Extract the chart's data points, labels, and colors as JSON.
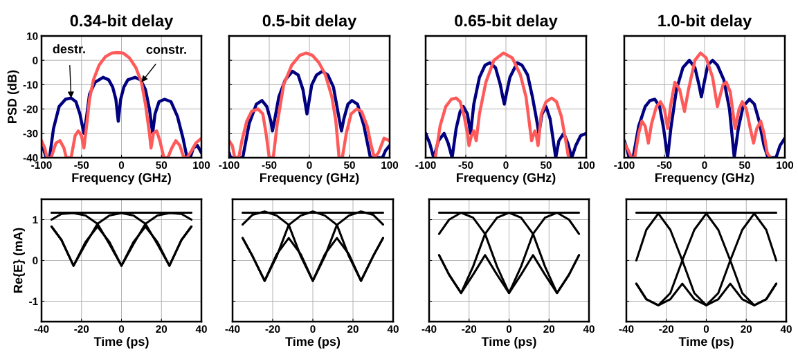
{
  "chart_data": [
    {
      "type": "line",
      "title": "0.34-bit delay",
      "xlabel": "Frequency (GHz)",
      "ylabel": "PSD (dB)",
      "xlim": [
        -100,
        100
      ],
      "ylim": [
        -40,
        10
      ],
      "xticks": [
        -100,
        -50,
        0,
        50,
        100
      ],
      "yticks": [
        -40,
        -30,
        -20,
        -10,
        0,
        10
      ],
      "grid": true,
      "annotations": [
        {
          "text": "destr.",
          "x": -63,
          "y": -15.5
        },
        {
          "text": "constr.",
          "x": 25,
          "y": -9
        }
      ],
      "series": [
        {
          "color": "#000080",
          "x": [
            -100,
            -97,
            -94,
            -90,
            -85,
            -78,
            -70,
            -63,
            -57,
            -52,
            -47,
            -44,
            -40,
            -33,
            -23,
            -16,
            -11,
            -7,
            -4,
            -1,
            3,
            8,
            17,
            24,
            30,
            35,
            39,
            42,
            47,
            54,
            62,
            70,
            77,
            82,
            86,
            90,
            95,
            100
          ],
          "values": [
            -35,
            -37,
            -40,
            -40,
            -28,
            -19,
            -16,
            -15.5,
            -17,
            -22,
            -30,
            -24,
            -14,
            -9,
            -7,
            -8,
            -11,
            -16,
            -25,
            -16,
            -11,
            -8,
            -7,
            -8,
            -12,
            -20,
            -30,
            -22,
            -17,
            -16,
            -17,
            -23,
            -32,
            -40,
            -40,
            -36,
            -35,
            -38
          ]
        },
        {
          "color": "#ff5a5a",
          "x": [
            -100,
            -96,
            -93,
            -88,
            -82,
            -77,
            -72,
            -69,
            -63,
            -58,
            -54,
            -50,
            -47,
            -44,
            -40,
            -35,
            -28,
            -20,
            -12,
            -5,
            2,
            10,
            18,
            25,
            30,
            35,
            37,
            40,
            44,
            48,
            53,
            58,
            63,
            68,
            73,
            78,
            82,
            88,
            93,
            100
          ],
          "values": [
            -33,
            -36,
            -40,
            -40,
            -34,
            -33,
            -36,
            -40,
            -40,
            -31,
            -29,
            -31,
            -36,
            -28,
            -16,
            -8,
            -2,
            1.5,
            3,
            3.2,
            3,
            1,
            -3,
            -9,
            -18,
            -30,
            -36,
            -30,
            -29,
            -33,
            -40,
            -40,
            -36,
            -33,
            -35,
            -40,
            -40,
            -37,
            -34,
            -32
          ]
        }
      ]
    },
    {
      "type": "line",
      "title": "0.5-bit delay",
      "xlabel": "Frequency (GHz)",
      "xlim": [
        -100,
        100
      ],
      "ylim": [
        -40,
        10
      ],
      "xticks": [
        -100,
        -50,
        0,
        50,
        100
      ],
      "yticks": [
        -40,
        -30,
        -20,
        -10,
        0,
        10
      ],
      "grid": true,
      "tick_labels": "x",
      "series": [
        {
          "color": "#000080",
          "x": [
            -100,
            -98,
            -95,
            -90,
            -83,
            -75,
            -66,
            -59,
            -53,
            -48,
            -46,
            -43,
            -38,
            -30,
            -21,
            -14,
            -8,
            -5,
            -3,
            -1,
            3,
            9,
            16,
            23,
            30,
            36,
            40,
            43,
            48,
            53,
            60,
            68,
            76,
            83,
            91,
            95,
            100
          ],
          "values": [
            -38,
            -40,
            -40,
            -40,
            -40,
            -26,
            -18,
            -16.5,
            -19,
            -25,
            -29,
            -24,
            -15,
            -8,
            -4.5,
            -6,
            -12,
            -18,
            -22,
            -18,
            -10,
            -6,
            -4.5,
            -6,
            -11,
            -22,
            -29,
            -24,
            -18,
            -16.5,
            -18,
            -27,
            -40,
            -40,
            -40,
            -37,
            -35
          ]
        },
        {
          "color": "#ff5a5a",
          "x": [
            -100,
            -96,
            -93,
            -88,
            -84,
            -78,
            -72,
            -64,
            -58,
            -54,
            -50,
            -45,
            -40,
            -32,
            -22,
            -12,
            -4,
            4,
            12,
            20,
            28,
            33,
            37,
            41,
            46,
            52,
            59,
            65,
            72,
            77,
            81,
            86,
            93,
            100
          ],
          "values": [
            -33,
            -35,
            -40,
            -40,
            -33,
            -25,
            -21,
            -20,
            -22,
            -30,
            -40,
            -40,
            -26,
            -10,
            -2,
            2,
            3,
            2,
            -1,
            -6,
            -15,
            -25,
            -40,
            -40,
            -30,
            -22,
            -20,
            -21,
            -27,
            -35,
            -40,
            -38,
            -32,
            -33
          ]
        }
      ]
    },
    {
      "type": "line",
      "title": "0.65-bit delay",
      "xlabel": "Frequency (GHz)",
      "xlim": [
        -100,
        100
      ],
      "ylim": [
        -40,
        10
      ],
      "xticks": [
        -100,
        -50,
        0,
        50,
        100
      ],
      "yticks": [
        -40,
        -30,
        -20,
        -10,
        0,
        10
      ],
      "grid": true,
      "tick_labels": "x",
      "series": [
        {
          "color": "#000080",
          "x": [
            -100,
            -95,
            -90,
            -84,
            -77,
            -72,
            -67,
            -62,
            -57,
            -53,
            -48,
            -44,
            -40,
            -33,
            -26,
            -20,
            -13,
            -7,
            -4,
            -2,
            1,
            5,
            14,
            20,
            27,
            33,
            38,
            41,
            45,
            50,
            55,
            59,
            62,
            66,
            72,
            77,
            82,
            87,
            93,
            100
          ],
          "values": [
            -30,
            -34,
            -40,
            -33,
            -30,
            -34,
            -40,
            -28,
            -21,
            -19,
            -22,
            -30,
            -18,
            -7,
            -2,
            -1,
            -3,
            -10,
            -15,
            -18,
            -13,
            -7,
            -1,
            -2,
            -6,
            -15,
            -24,
            -30,
            -22,
            -19,
            -24,
            -33,
            -40,
            -33,
            -30,
            -34,
            -40,
            -35,
            -31,
            -30
          ]
        },
        {
          "color": "#ff5a5a",
          "x": [
            -88,
            -82,
            -75,
            -68,
            -62,
            -57,
            -52,
            -48,
            -46,
            -43,
            -40,
            -37,
            -33,
            -25,
            -15,
            -3,
            8,
            18,
            25,
            30,
            32,
            34,
            36,
            38,
            40,
            44,
            50,
            57,
            63,
            69,
            74,
            78
          ],
          "values": [
            -40,
            -27,
            -19,
            -16,
            -15.5,
            -17,
            -23,
            -30,
            -35,
            -31,
            -29,
            -33,
            -22,
            -9,
            0,
            3,
            1,
            -6,
            -15,
            -28,
            -33,
            -31,
            -29,
            -31,
            -35,
            -22,
            -17,
            -15.5,
            -17,
            -23,
            -32,
            -40
          ]
        }
      ]
    },
    {
      "type": "line",
      "title": "1.0-bit delay",
      "xlabel": "Frequency (GHz)",
      "xlim": [
        -100,
        100
      ],
      "ylim": [
        -40,
        10
      ],
      "xticks": [
        -100,
        -50,
        0,
        50,
        100
      ],
      "yticks": [
        -40,
        -30,
        -20,
        -10,
        0,
        10
      ],
      "grid": true,
      "tick_labels": "x",
      "series": [
        {
          "color": "#000080",
          "x": [
            -100,
            -97,
            -94,
            -89,
            -82,
            -74,
            -68,
            -62,
            -56,
            -51,
            -46,
            -42,
            -35,
            -27,
            -19,
            -12,
            -7,
            -4,
            -1,
            4,
            10,
            16,
            24,
            31,
            37,
            42,
            48,
            56,
            62,
            68,
            74,
            79,
            84,
            89,
            94,
            100
          ],
          "values": [
            -33,
            -36,
            -40,
            -40,
            -27,
            -19,
            -16.5,
            -16,
            -19,
            -28,
            -40,
            -28,
            -12,
            -3,
            0,
            -3,
            -10,
            -15,
            -10,
            -2,
            0,
            -2,
            -8,
            -20,
            -40,
            -28,
            -19,
            -16,
            -18,
            -25,
            -35,
            -40,
            -40,
            -40,
            -35,
            -32
          ]
        },
        {
          "color": "#ff5a5a",
          "x": [
            -100,
            -95,
            -91,
            -87,
            -82,
            -78,
            -74,
            -70,
            -66,
            -60,
            -55,
            -50,
            -46,
            -42,
            -37,
            -31,
            -25,
            -20,
            -12,
            -5,
            2,
            10,
            16,
            19,
            23,
            27,
            32,
            38,
            43,
            47,
            52,
            57,
            61,
            65,
            70,
            74,
            78,
            82
          ],
          "values": [
            -34,
            -37,
            -40,
            -40,
            -30,
            -25,
            -27,
            -34,
            -26,
            -19,
            -17,
            -20,
            -28,
            -18,
            -9,
            -12,
            -21,
            -12,
            0,
            3,
            1,
            -7,
            -19,
            -15,
            -10,
            -9,
            -13,
            -28,
            -20,
            -17,
            -20,
            -28,
            -34,
            -28,
            -25,
            -30,
            -38,
            -40
          ]
        }
      ]
    },
    {
      "type": "line",
      "xlabel": "Time (ps)",
      "ylabel": "Re{E} (mA)",
      "xlim": [
        -40,
        40
      ],
      "ylim": [
        -1.5,
        1.5
      ],
      "xticks": [
        -40,
        -20,
        0,
        20,
        40
      ],
      "yticks": [
        -1,
        0,
        1
      ],
      "grid": true,
      "series": [
        {
          "color": "#000000",
          "x": [
            -35,
            35
          ],
          "values": [
            1.17,
            1.17
          ]
        },
        {
          "color": "#000000",
          "x": [
            -35,
            -30,
            -24,
            -18,
            -12,
            -6,
            0,
            6,
            12,
            18,
            24,
            30,
            35
          ],
          "values": [
            0.83,
            0.5,
            -0.13,
            0.45,
            0.83,
            0.45,
            -0.13,
            0.45,
            0.83,
            0.45,
            -0.13,
            0.5,
            0.83
          ]
        },
        {
          "color": "#000000",
          "x": [
            -35,
            -30,
            -24,
            -18,
            -12,
            -6,
            0,
            6,
            12,
            18,
            24,
            30,
            35
          ],
          "values": [
            1.0,
            1.14,
            1.16,
            1.1,
            0.9,
            0.4,
            -0.13,
            0.4,
            0.9,
            1.1,
            1.16,
            1.14,
            1.0
          ]
        },
        {
          "color": "#000000",
          "x": [
            -35,
            -30,
            -24,
            -18,
            -12,
            -6,
            0,
            6,
            12,
            18,
            24,
            30,
            35
          ],
          "values": [
            0.83,
            0.5,
            -0.13,
            0.4,
            0.9,
            1.1,
            1.16,
            1.1,
            0.9,
            0.4,
            -0.13,
            0.5,
            0.83
          ]
        }
      ]
    },
    {
      "type": "line",
      "xlabel": "Time (ps)",
      "xlim": [
        -40,
        40
      ],
      "ylim": [
        -1.5,
        1.5
      ],
      "xticks": [
        -40,
        -20,
        0,
        20,
        40
      ],
      "yticks": [
        -1,
        0,
        1
      ],
      "grid": true,
      "tick_labels": "x",
      "series": [
        {
          "color": "#000000",
          "x": [
            -35,
            35
          ],
          "values": [
            1.17,
            1.17
          ]
        },
        {
          "color": "#000000",
          "x": [
            -35,
            -30,
            -24,
            -18,
            -12,
            -6,
            0,
            6,
            12,
            18,
            24,
            30,
            35
          ],
          "values": [
            0.55,
            0.1,
            -0.5,
            0.15,
            0.55,
            0.15,
            -0.5,
            0.15,
            0.55,
            0.15,
            -0.5,
            0.1,
            0.55
          ]
        },
        {
          "color": "#000000",
          "x": [
            -35,
            -30,
            -24,
            -18,
            -12,
            -6,
            0,
            6,
            12,
            18,
            24,
            30,
            35
          ],
          "values": [
            0.88,
            1.12,
            1.2,
            1.1,
            0.87,
            0.1,
            -0.5,
            0.1,
            0.87,
            1.1,
            1.2,
            1.12,
            0.88
          ]
        },
        {
          "color": "#000000",
          "x": [
            -35,
            -30,
            -24,
            -18,
            -12,
            -6,
            0,
            6,
            12,
            18,
            24,
            30,
            35
          ],
          "values": [
            0.55,
            0.1,
            -0.5,
            0.1,
            0.87,
            1.1,
            1.2,
            1.1,
            0.87,
            0.1,
            -0.5,
            0.1,
            0.55
          ]
        }
      ]
    },
    {
      "type": "line",
      "xlabel": "Time (ps)",
      "xlim": [
        -40,
        40
      ],
      "ylim": [
        -1.5,
        1.5
      ],
      "xticks": [
        -40,
        -20,
        0,
        20,
        40
      ],
      "yticks": [
        -1,
        0,
        1
      ],
      "grid": true,
      "tick_labels": "x",
      "series": [
        {
          "color": "#000000",
          "x": [
            -35,
            35
          ],
          "values": [
            1.17,
            1.17
          ]
        },
        {
          "color": "#000000",
          "x": [
            -35,
            -30,
            -24,
            -18,
            -12,
            -6,
            0,
            6,
            12,
            18,
            24,
            30,
            35
          ],
          "values": [
            0.13,
            -0.35,
            -0.8,
            -0.35,
            0.13,
            -0.35,
            -0.8,
            -0.35,
            0.13,
            -0.35,
            -0.8,
            -0.35,
            0.13
          ]
        },
        {
          "color": "#000000",
          "x": [
            -35,
            -30,
            -24,
            -18,
            -12,
            -6,
            0,
            6,
            12,
            18,
            24,
            30,
            35
          ],
          "values": [
            0.65,
            1.0,
            1.17,
            1.05,
            0.65,
            -0.15,
            -0.8,
            -0.15,
            0.65,
            1.05,
            1.17,
            1.0,
            0.65
          ]
        },
        {
          "color": "#000000",
          "x": [
            -35,
            -30,
            -24,
            -18,
            -12,
            -6,
            0,
            6,
            12,
            18,
            24,
            30,
            35
          ],
          "values": [
            0.13,
            -0.35,
            -0.8,
            -0.15,
            0.65,
            1.05,
            1.17,
            1.05,
            0.65,
            -0.15,
            -0.8,
            -0.35,
            0.13
          ]
        }
      ]
    },
    {
      "type": "line",
      "xlabel": "Time (ps)",
      "xlim": [
        -40,
        40
      ],
      "ylim": [
        -1.5,
        1.5
      ],
      "xticks": [
        -40,
        -20,
        0,
        20,
        40
      ],
      "yticks": [
        -1,
        0,
        1
      ],
      "grid": true,
      "tick_labels": "x",
      "series": [
        {
          "color": "#000000",
          "x": [
            -35,
            35
          ],
          "values": [
            1.17,
            1.17
          ]
        },
        {
          "color": "#000000",
          "x": [
            -35,
            -30,
            -24,
            -18,
            -12,
            -6,
            0,
            6,
            12,
            18,
            24,
            30,
            35
          ],
          "values": [
            -0.57,
            -0.95,
            -1.1,
            -0.95,
            -0.57,
            -0.95,
            -1.1,
            -0.95,
            -0.57,
            -0.95,
            -1.1,
            -0.95,
            -0.57
          ]
        },
        {
          "color": "#000000",
          "x": [
            -35,
            -30,
            -24,
            -18,
            -12,
            -6,
            0,
            6,
            12,
            18,
            24,
            30,
            35
          ],
          "values": [
            0.0,
            0.75,
            1.15,
            0.75,
            0.0,
            -0.8,
            -1.1,
            -0.8,
            0.0,
            0.75,
            1.15,
            0.75,
            0.0
          ]
        },
        {
          "color": "#000000",
          "x": [
            -35,
            -30,
            -24,
            -18,
            -12,
            -6,
            0,
            6,
            12,
            18,
            24,
            30,
            35
          ],
          "values": [
            -0.57,
            -0.95,
            -1.1,
            -0.8,
            0.0,
            0.75,
            1.15,
            0.75,
            0.0,
            -0.8,
            -1.1,
            -0.95,
            -0.57
          ]
        }
      ]
    }
  ]
}
